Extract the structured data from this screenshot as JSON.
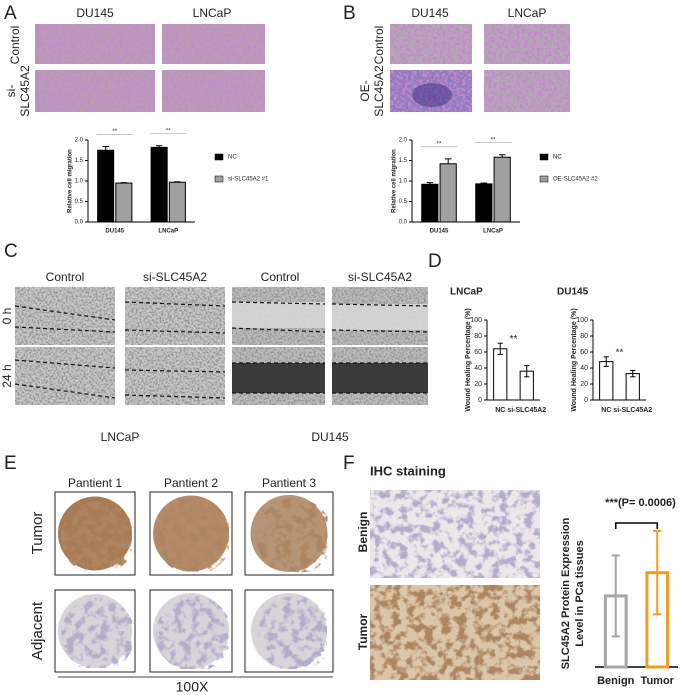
{
  "panels": {
    "a": "A",
    "b": "B",
    "c": "C",
    "d": "D",
    "e": "E",
    "f": "F"
  },
  "panel_a": {
    "columns": [
      "DU145",
      "LNCaP"
    ],
    "rows": [
      [
        "Control"
      ],
      [
        "si-",
        "SLC45A2"
      ]
    ]
  },
  "panel_b": {
    "columns": [
      "DU145",
      "LNCaP"
    ],
    "rows": [
      [
        "Control"
      ],
      [
        "OE-",
        "SLC45A2"
      ]
    ]
  },
  "panel_c": {
    "columns": [
      "Control",
      "si-SLC45A2",
      "Control",
      "si-SLC45A2"
    ],
    "rows": [
      "0 h",
      "24 h"
    ],
    "cell_lines": [
      "LNCaP",
      "DU145"
    ]
  },
  "panel_e": {
    "columns": [
      "Pantient 1",
      "Pantient 2",
      "Pantient 3"
    ],
    "rows": [
      "Tumor",
      "Adjacent"
    ],
    "magnification": "100X"
  },
  "panel_f": {
    "title": "IHC staining",
    "rows": [
      "Benign",
      "Tumor"
    ]
  },
  "chart_data": [
    {
      "type": "bar",
      "categories": [
        "DU145",
        "LNCaP"
      ],
      "ylabel": "Relative cell migration",
      "series": [
        {
          "name": "NC",
          "color": "#000000",
          "values": [
            1.75,
            1.82
          ],
          "errors": [
            0.09,
            0.04
          ]
        },
        {
          "name": "si-SLC45A2 #1",
          "color": "#a0a0a0",
          "values": [
            0.95,
            0.97
          ],
          "errors": [
            0.01,
            0.01
          ]
        }
      ],
      "ylim": [
        0,
        2.0
      ],
      "yticks": [
        {
          "value": 0,
          "label": "0.0"
        },
        0.5,
        {
          "value": 1.0,
          "label": "1.0"
        },
        1.5,
        {
          "value": 2.0,
          "label": "2.0"
        }
      ],
      "annotations": [
        "**",
        "**"
      ]
    },
    {
      "type": "bar",
      "categories": [
        "DU145",
        "LNCaP"
      ],
      "ylabel": "Relative cell migration",
      "series": [
        {
          "name": "NC",
          "color": "#000000",
          "values": [
            0.92,
            0.93
          ],
          "errors": [
            0.04,
            0.02
          ]
        },
        {
          "name": "OE-SLC45A2 #2",
          "color": "#a0a0a0",
          "values": [
            1.42,
            1.58
          ],
          "errors": [
            0.12,
            0.06
          ]
        }
      ],
      "ylim": [
        0,
        2.0
      ],
      "yticks": [
        {
          "value": 0,
          "label": "0.0"
        },
        0.5,
        {
          "value": 1.0,
          "label": "1.0"
        },
        1.5,
        {
          "value": 2.0,
          "label": "2.0"
        }
      ],
      "annotations": [
        "**",
        "**"
      ]
    },
    {
      "type": "bar",
      "title": "LNCaP",
      "categories": [
        "NC",
        "si-SLC45A2"
      ],
      "values": [
        64,
        36
      ],
      "errors": [
        7,
        7
      ],
      "color": "#000000",
      "hollow": true,
      "ylabel": "Wound Healing Percentage (%)",
      "ylim": [
        0,
        100
      ],
      "yticks": [
        0,
        20,
        40,
        60,
        80,
        100
      ],
      "annotations": [
        "**"
      ]
    },
    {
      "type": "bar",
      "title": "DU145",
      "categories": [
        "NC",
        "si-SLC45A2"
      ],
      "values": [
        48,
        33
      ],
      "errors": [
        6,
        4
      ],
      "color": "#000000",
      "hollow": true,
      "ylabel": "Wound Healing Percentage (%)",
      "ylim": [
        0,
        100
      ],
      "yticks": [
        0,
        20,
        40,
        60,
        80,
        100
      ],
      "annotations": [
        "**"
      ]
    },
    {
      "type": "bar",
      "categories": [
        "Benign",
        "Tumor"
      ],
      "values": [
        2.9,
        3.85
      ],
      "errors": [
        1.65,
        1.7
      ],
      "colors": [
        "#a6a6a6",
        "#f39c1f"
      ],
      "hollow": true,
      "ylabel": [
        "SLC45A2 Protein Expression",
        "Level in PCa tissues"
      ],
      "ylim": [
        0,
        6
      ],
      "annotations": [
        "***(P= 0.0006)"
      ]
    }
  ]
}
